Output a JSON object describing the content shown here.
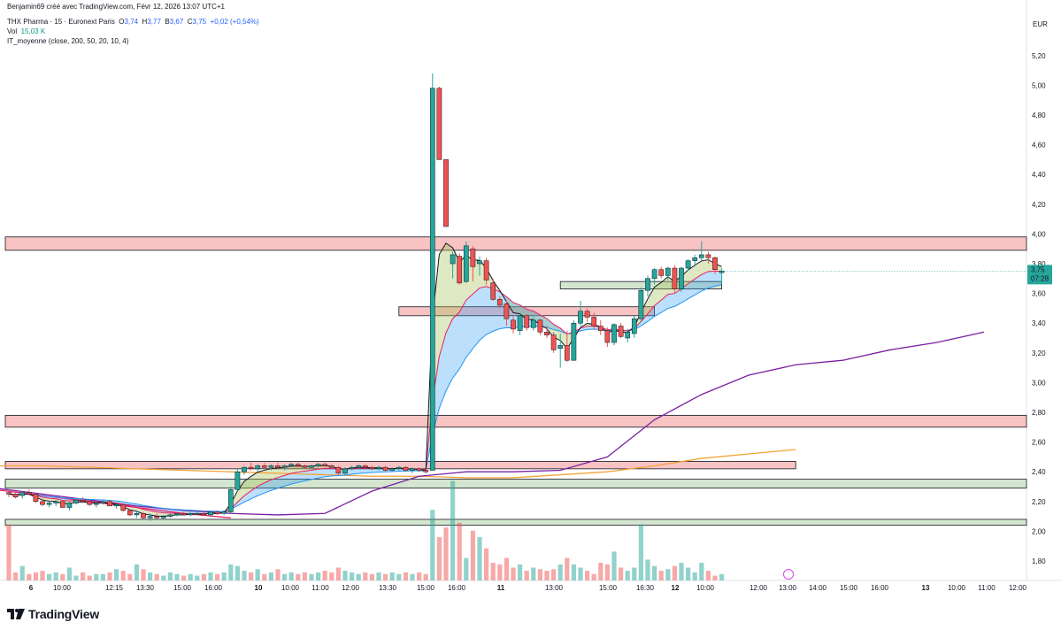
{
  "header": {
    "author_line": "Benjamin69 créé avec TradingView.com, Févr 12, 2026 13:07 UTC+1",
    "symbol": "THX Pharma · 15 · Euronext Paris",
    "ohlc": {
      "o_label": "O",
      "o": "3,74",
      "h_label": "H",
      "h": "3,77",
      "b_label": "B",
      "b": "3,67",
      "c_label": "C",
      "c": "3,75",
      "change": "+0,02 (+0,54%)"
    },
    "vol_label": "Vol",
    "vol_value": "15,03 K",
    "indicator": "IT_moyenne (close, 200, 50, 20, 10, 4)"
  },
  "footer": {
    "logo_text": "TradingView"
  },
  "price_axis": {
    "currency": "EUR",
    "current_price": "3,75",
    "countdown": "07:28"
  },
  "colors": {
    "up": "#26a69a",
    "down": "#ef5350",
    "zone_red_fill": "#f7c3c3",
    "zone_green_fill": "#d4e6cf",
    "ema_slow": "#f2a33a",
    "ema_purple": "#7b1fa2",
    "ema_pink": "#e91e63",
    "ema_blue": "#2196f3",
    "ema_black": "#131722"
  },
  "chart_data": {
    "type": "candlestick",
    "title": "THX Pharma · 15 · Euronext Paris",
    "ylim": [
      1.75,
      5.35
    ],
    "y_ticks": [
      "5,20",
      "5,00",
      "4,80",
      "4,60",
      "4,40",
      "4,20",
      "4,00",
      "3,80",
      "3,60",
      "3,40",
      "3,20",
      "3,00",
      "2,80",
      "2,60",
      "2,40",
      "2,20",
      "2,00",
      "1,80"
    ],
    "x_ticks": [
      {
        "label": "6",
        "bold": true
      },
      {
        "label": "10:00"
      },
      {
        "label": "12:15"
      },
      {
        "label": "13:30"
      },
      {
        "label": "15:00"
      },
      {
        "label": "16:00"
      },
      {
        "label": "10",
        "bold": true
      },
      {
        "label": "10:00"
      },
      {
        "label": "11:00"
      },
      {
        "label": "12:00"
      },
      {
        "label": "13:30"
      },
      {
        "label": "15:00"
      },
      {
        "label": "16:00"
      },
      {
        "label": "11",
        "bold": true
      },
      {
        "label": "13:00"
      },
      {
        "label": "15:00"
      },
      {
        "label": "16:30"
      },
      {
        "label": "12",
        "bold": true
      },
      {
        "label": "10:00"
      },
      {
        "label": "12:00"
      },
      {
        "label": "13:00"
      },
      {
        "label": "14:00"
      },
      {
        "label": "15:00"
      },
      {
        "label": "16:00"
      },
      {
        "label": "13",
        "bold": true
      },
      {
        "label": "10:00"
      },
      {
        "label": "11:00"
      },
      {
        "label": "12:00"
      }
    ],
    "zones": [
      {
        "name": "resistance-zone-top",
        "color": "red",
        "from_idx": -2,
        "to_idx": 200,
        "y_low": 3.89,
        "y_high": 3.98
      },
      {
        "name": "resistance-zone-mid",
        "color": "red",
        "from_idx": 58,
        "to_idx": 96,
        "y_low": 3.45,
        "y_high": 3.51
      },
      {
        "name": "support-zone-right",
        "color": "green",
        "from_idx": 82,
        "to_idx": 106,
        "y_low": 3.63,
        "y_high": 3.68
      },
      {
        "name": "resistance-zone-low",
        "color": "red",
        "from_idx": -2,
        "to_idx": 200,
        "y_low": 2.7,
        "y_high": 2.78
      },
      {
        "name": "resistance-zone-band",
        "color": "red",
        "from_idx": -2,
        "to_idx": 117,
        "y_low": 2.42,
        "y_high": 2.47
      },
      {
        "name": "support-zone-wide",
        "color": "green",
        "from_idx": -2,
        "to_idx": 200,
        "y_low": 2.29,
        "y_high": 2.35
      },
      {
        "name": "support-zone-bottom",
        "color": "green",
        "from_idx": -2,
        "to_idx": 200,
        "y_low": 2.04,
        "y_high": 2.08
      }
    ],
    "candles": [
      [
        2.26,
        2.28,
        2.23,
        2.25,
        2.1
      ],
      [
        2.25,
        2.27,
        2.22,
        2.23,
        1.8
      ],
      [
        2.24,
        2.27,
        2.22,
        2.26,
        1.84
      ],
      [
        2.26,
        2.28,
        2.24,
        2.25,
        1.79
      ],
      [
        2.25,
        2.26,
        2.19,
        2.2,
        1.8
      ],
      [
        2.2,
        2.22,
        2.17,
        2.18,
        1.81
      ],
      [
        2.18,
        2.2,
        2.16,
        2.19,
        1.79
      ],
      [
        2.19,
        2.21,
        2.17,
        2.2,
        1.8
      ],
      [
        2.2,
        2.21,
        2.16,
        2.16,
        1.79
      ],
      [
        2.16,
        2.2,
        2.14,
        2.19,
        1.83
      ],
      [
        2.19,
        2.22,
        2.18,
        2.21,
        1.78
      ],
      [
        2.21,
        2.23,
        2.19,
        2.2,
        1.8
      ],
      [
        2.2,
        2.21,
        2.17,
        2.18,
        1.78
      ],
      [
        2.18,
        2.2,
        2.16,
        2.19,
        1.79
      ],
      [
        2.19,
        2.21,
        2.18,
        2.2,
        1.79
      ],
      [
        2.2,
        2.21,
        2.17,
        2.17,
        1.8
      ],
      [
        2.17,
        2.19,
        2.15,
        2.18,
        1.82
      ],
      [
        2.18,
        2.19,
        2.13,
        2.14,
        1.81
      ],
      [
        2.14,
        2.15,
        2.1,
        2.11,
        1.79
      ],
      [
        2.11,
        2.14,
        2.09,
        2.12,
        1.85
      ],
      [
        2.12,
        2.13,
        2.08,
        2.09,
        1.82
      ],
      [
        2.09,
        2.12,
        2.07,
        2.1,
        1.8
      ],
      [
        2.1,
        2.12,
        2.08,
        2.09,
        1.79
      ],
      [
        2.09,
        2.11,
        2.08,
        2.1,
        1.78
      ],
      [
        2.1,
        2.12,
        2.09,
        2.11,
        1.8
      ],
      [
        2.11,
        2.12,
        2.1,
        2.12,
        1.79
      ],
      [
        2.12,
        2.13,
        2.11,
        2.11,
        1.78
      ],
      [
        2.11,
        2.13,
        2.1,
        2.12,
        1.79
      ],
      [
        2.12,
        2.13,
        2.11,
        2.12,
        1.78
      ],
      [
        2.12,
        2.14,
        2.11,
        2.11,
        1.79
      ],
      [
        2.11,
        2.13,
        2.1,
        2.13,
        1.8
      ],
      [
        2.13,
        2.14,
        2.11,
        2.12,
        1.79
      ],
      [
        2.12,
        2.14,
        2.11,
        2.13,
        1.8
      ],
      [
        2.13,
        2.3,
        2.12,
        2.28,
        1.85
      ],
      [
        2.28,
        2.42,
        2.27,
        2.4,
        1.84
      ],
      [
        2.4,
        2.44,
        2.38,
        2.43,
        1.81
      ],
      [
        2.43,
        2.46,
        2.41,
        2.42,
        1.8
      ],
      [
        2.42,
        2.45,
        2.4,
        2.44,
        1.82
      ],
      [
        2.44,
        2.46,
        2.42,
        2.43,
        1.79
      ],
      [
        2.43,
        2.45,
        2.41,
        2.44,
        1.8
      ],
      [
        2.44,
        2.46,
        2.42,
        2.43,
        1.82
      ],
      [
        2.43,
        2.45,
        2.41,
        2.44,
        1.79
      ],
      [
        2.44,
        2.46,
        2.43,
        2.45,
        1.8
      ],
      [
        2.45,
        2.46,
        2.43,
        2.44,
        1.79
      ],
      [
        2.44,
        2.45,
        2.42,
        2.43,
        1.8
      ],
      [
        2.43,
        2.45,
        2.42,
        2.44,
        1.79
      ],
      [
        2.44,
        2.46,
        2.43,
        2.45,
        1.8
      ],
      [
        2.45,
        2.46,
        2.43,
        2.44,
        1.81
      ],
      [
        2.44,
        2.45,
        2.42,
        2.43,
        1.8
      ],
      [
        2.43,
        2.44,
        2.38,
        2.39,
        1.83
      ],
      [
        2.39,
        2.43,
        2.38,
        2.42,
        1.81
      ],
      [
        2.42,
        2.44,
        2.41,
        2.43,
        1.8
      ],
      [
        2.43,
        2.45,
        2.42,
        2.44,
        1.79
      ],
      [
        2.44,
        2.45,
        2.42,
        2.43,
        1.8
      ],
      [
        2.43,
        2.44,
        2.41,
        2.42,
        1.79
      ],
      [
        2.42,
        2.44,
        2.41,
        2.43,
        1.8
      ],
      [
        2.43,
        2.44,
        2.4,
        2.41,
        1.79
      ],
      [
        2.41,
        2.43,
        2.4,
        2.42,
        1.8
      ],
      [
        2.42,
        2.44,
        2.41,
        2.43,
        1.79
      ],
      [
        2.43,
        2.44,
        2.4,
        2.41,
        1.8
      ],
      [
        2.41,
        2.43,
        2.39,
        2.42,
        1.79
      ],
      [
        2.42,
        2.43,
        2.4,
        2.41,
        1.8
      ],
      [
        2.41,
        2.42,
        2.39,
        2.4,
        1.79
      ],
      [
        2.41,
        5.08,
        2.41,
        4.98,
        2.19
      ],
      [
        4.98,
        4.99,
        4.5,
        4.5,
        2.02
      ],
      [
        4.5,
        4.5,
        4.05,
        4.05,
        2.08
      ],
      [
        3.8,
        3.88,
        3.7,
        3.86,
        2.37
      ],
      [
        3.85,
        3.87,
        3.66,
        3.67,
        2.11
      ],
      [
        3.68,
        3.95,
        3.67,
        3.92,
        1.89
      ],
      [
        3.9,
        3.92,
        3.68,
        3.78,
        2.06
      ],
      [
        3.8,
        3.85,
        3.72,
        3.82,
        2.02
      ],
      [
        3.82,
        3.84,
        3.66,
        3.69,
        1.95
      ],
      [
        3.67,
        3.7,
        3.55,
        3.56,
        1.86
      ],
      [
        3.56,
        3.58,
        3.5,
        3.52,
        1.85
      ],
      [
        3.53,
        3.55,
        3.38,
        3.43,
        1.89
      ],
      [
        3.42,
        3.45,
        3.33,
        3.36,
        1.83
      ],
      [
        3.35,
        3.47,
        3.32,
        3.45,
        1.85
      ],
      [
        3.45,
        3.46,
        3.35,
        3.37,
        1.81
      ],
      [
        3.37,
        3.44,
        3.35,
        3.42,
        1.83
      ],
      [
        3.42,
        3.43,
        3.32,
        3.34,
        1.82
      ],
      [
        3.34,
        3.38,
        3.3,
        3.32,
        1.81
      ],
      [
        3.32,
        3.34,
        3.2,
        3.22,
        1.82
      ],
      [
        3.23,
        3.33,
        3.1,
        3.25,
        1.85
      ],
      [
        3.25,
        3.35,
        3.14,
        3.15,
        1.89
      ],
      [
        3.15,
        3.42,
        3.15,
        3.4,
        1.85
      ],
      [
        3.4,
        3.55,
        3.38,
        3.48,
        1.83
      ],
      [
        3.48,
        3.5,
        3.41,
        3.44,
        1.81
      ],
      [
        3.44,
        3.47,
        3.36,
        3.38,
        1.79
      ],
      [
        3.38,
        3.42,
        3.32,
        3.35,
        1.86
      ],
      [
        3.35,
        3.37,
        3.24,
        3.27,
        1.85
      ],
      [
        3.27,
        3.4,
        3.25,
        3.39,
        1.93
      ],
      [
        3.38,
        3.4,
        3.3,
        3.31,
        1.83
      ],
      [
        3.3,
        3.36,
        3.27,
        3.34,
        1.81
      ],
      [
        3.33,
        3.45,
        3.3,
        3.43,
        1.83
      ],
      [
        3.43,
        3.64,
        3.41,
        3.62,
        2.1
      ],
      [
        3.62,
        3.72,
        3.58,
        3.7,
        1.88
      ],
      [
        3.7,
        3.77,
        3.66,
        3.76,
        1.84
      ],
      [
        3.76,
        3.78,
        3.7,
        3.72,
        1.81
      ],
      [
        3.72,
        3.78,
        3.69,
        3.77,
        1.82
      ],
      [
        3.77,
        3.79,
        3.6,
        3.63,
        1.84
      ],
      [
        3.63,
        3.78,
        3.61,
        3.77,
        1.86
      ],
      [
        3.77,
        3.83,
        3.75,
        3.82,
        1.83
      ],
      [
        3.82,
        3.86,
        3.78,
        3.84,
        1.8
      ],
      [
        3.84,
        3.95,
        3.82,
        3.86,
        1.86
      ],
      [
        3.86,
        3.88,
        3.8,
        3.84,
        1.81
      ],
      [
        3.84,
        3.85,
        3.73,
        3.76,
        1.78
      ],
      [
        3.74,
        3.77,
        3.67,
        3.75,
        1.79
      ]
    ],
    "series": [
      {
        "name": "ema_slow_orange",
        "color": "#f2a33a",
        "start": -2,
        "values": [
          2.44,
          2.44,
          2.43,
          2.42,
          2.41,
          2.4,
          2.39,
          2.38,
          2.37,
          2.37,
          2.36,
          2.36,
          2.38,
          2.4,
          2.44,
          2.49,
          2.52,
          2.55
        ]
      },
      {
        "name": "ema_purple",
        "color": "#7b1fa2",
        "start": -2,
        "values": [
          2.29,
          2.25,
          2.21,
          2.17,
          2.14,
          2.12,
          2.11,
          2.12,
          2.27,
          2.37,
          2.4,
          2.4,
          2.41,
          2.5,
          2.75,
          2.92,
          3.05,
          3.12,
          3.15,
          3.22,
          3.27,
          3.34
        ]
      },
      {
        "name": "ema_pink_decline",
        "color": "#e91e63",
        "start": -2,
        "values": [
          2.28,
          2.24,
          2.2,
          2.16,
          2.12,
          2.09
        ]
      }
    ]
  }
}
